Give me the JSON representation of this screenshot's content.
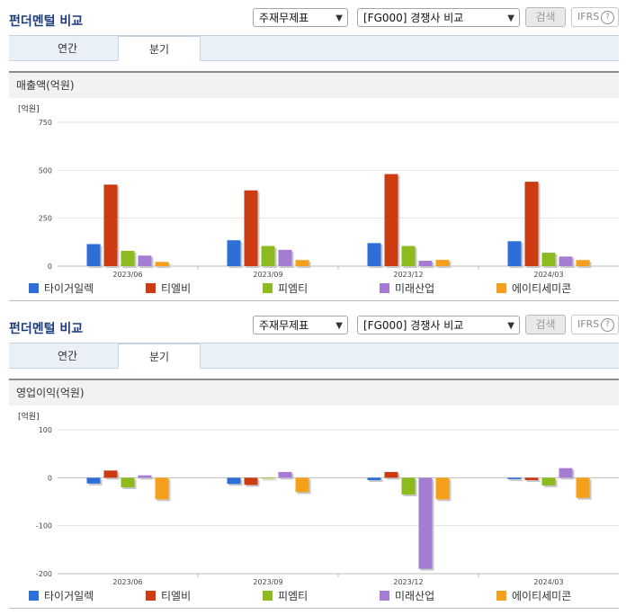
{
  "panels": [
    {
      "title": "펀더멘털 비교",
      "select1": "주재무제표",
      "select2": "[FG000] 경쟁사 비교",
      "search_label": "검색",
      "ifrs_label": "IFRS",
      "help_glyph": "?",
      "tabs": [
        "연간",
        "분기"
      ],
      "active_tab": "분기",
      "section_title": "매출액(억원)"
    },
    {
      "title": "펀더멘털 비교",
      "select1": "주재무제표",
      "select2": "[FG000] 경쟁사 비교",
      "search_label": "검색",
      "ifrs_label": "IFRS",
      "help_glyph": "?",
      "tabs": [
        "연간",
        "분기"
      ],
      "active_tab": "분기",
      "section_title": "영업이익(억원)"
    }
  ],
  "icons": {
    "dropdown": "chevron-down-icon",
    "help": "question-circle-icon"
  },
  "colors": {
    "series": [
      "#2d6fd6",
      "#cc3b12",
      "#8dbb1f",
      "#a57bd3",
      "#f5a01c"
    ],
    "title": "#1c3c7a",
    "tab_bg": "#eaf0f8"
  },
  "chart_data": [
    {
      "type": "bar",
      "unit": "[억원]",
      "categories": [
        "2023/06",
        "2023/09",
        "2023/12",
        "2024/03"
      ],
      "ylim": [
        0,
        750
      ],
      "yticks": [
        0,
        250,
        500,
        750
      ],
      "grid": true,
      "legend_position": "bottom",
      "series": [
        {
          "name": "타이거일렉",
          "values": [
            115,
            135,
            120,
            130
          ]
        },
        {
          "name": "티엘비",
          "values": [
            425,
            395,
            480,
            440
          ]
        },
        {
          "name": "피엠티",
          "values": [
            80,
            105,
            105,
            70
          ]
        },
        {
          "name": "미래산업",
          "values": [
            55,
            85,
            28,
            50
          ]
        },
        {
          "name": "에이티세미콘",
          "values": [
            22,
            32,
            33,
            32
          ]
        }
      ]
    },
    {
      "type": "bar",
      "unit": "[억원]",
      "categories": [
        "2023/06",
        "2023/09",
        "2023/12",
        "2024/03"
      ],
      "ylim": [
        -200,
        100
      ],
      "yticks": [
        -200,
        -100,
        0,
        100
      ],
      "grid": true,
      "legend_position": "bottom",
      "series": [
        {
          "name": "타이거일렉",
          "values": [
            -12,
            -13,
            -5,
            -3
          ]
        },
        {
          "name": "티엘비",
          "values": [
            15,
            -15,
            12,
            -5
          ]
        },
        {
          "name": "피엠티",
          "values": [
            -20,
            0,
            -35,
            -16
          ]
        },
        {
          "name": "미래산업",
          "values": [
            5,
            12,
            -190,
            20
          ]
        },
        {
          "name": "에이티세미콘",
          "values": [
            -45,
            -30,
            -45,
            -42
          ]
        }
      ]
    }
  ]
}
